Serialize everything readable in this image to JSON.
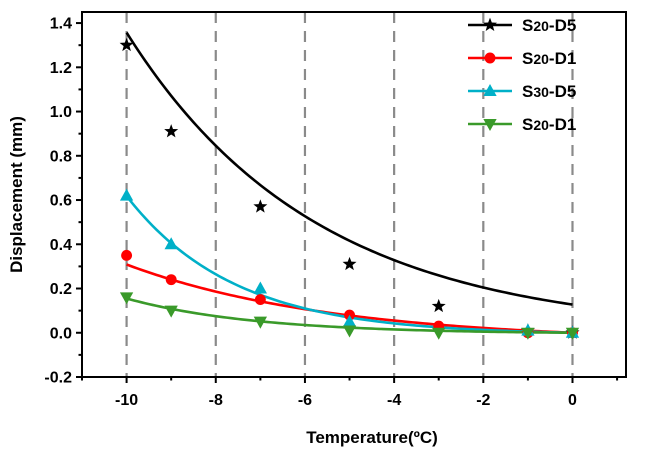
{
  "chart_data": {
    "type": "line",
    "title": "",
    "xlabel": "Temperature",
    "xlabel_unit": "(ºC)",
    "ylabel": "Displacement (mm)",
    "xlim": [
      -11,
      1.2
    ],
    "ylim": [
      -0.2,
      1.45
    ],
    "x_ticks": [
      -10,
      -8,
      -6,
      -4,
      -2,
      0
    ],
    "x_tick_labels": [
      "-10",
      "-8",
      "-6",
      "-4",
      "-2",
      "0"
    ],
    "y_ticks": [
      -0.2,
      0.0,
      0.2,
      0.4,
      0.6,
      0.8,
      1.0,
      1.2,
      1.4
    ],
    "y_tick_labels": [
      "-0.2",
      "0.0",
      "0.2",
      "0.4",
      "0.6",
      "0.8",
      "1.0",
      "1.2",
      "1.4"
    ],
    "grid": "vertical dashed lines at x ticks",
    "legend_position": "top-right",
    "series": [
      {
        "name": "S20-D5",
        "name_parts": [
          "S",
          "20",
          "-D5"
        ],
        "color": "#000000",
        "marker": "star",
        "x": [
          -10,
          -9,
          -7,
          -5,
          -3,
          -1,
          0
        ],
        "y": [
          1.3,
          0.91,
          0.57,
          0.31,
          0.12,
          0.01,
          0.0
        ],
        "fit": {
          "a": 0.0,
          "b": 0.1275,
          "k": 0.2365
        }
      },
      {
        "name": "S20-D1",
        "name_parts": [
          "S",
          "20",
          "-D1"
        ],
        "color": "#ff0000",
        "marker": "circle",
        "x": [
          -10,
          -9,
          -7,
          -5,
          -3,
          -1,
          0
        ],
        "y": [
          0.35,
          0.24,
          0.15,
          0.08,
          0.03,
          0.0,
          0.0
        ],
        "fit": {
          "a": -0.04,
          "b": 0.04,
          "k": 0.2165
        }
      },
      {
        "name": "S30-D5",
        "name_parts": [
          "S",
          "30",
          "-D5"
        ],
        "color": "#00b0c8",
        "marker": "triangle-up",
        "x": [
          -10,
          -9,
          -7,
          -5,
          -1,
          0
        ],
        "y": [
          0.62,
          0.4,
          0.2,
          0.05,
          0.01,
          0.0
        ],
        "fit": {
          "a": -0.01,
          "b": 0.01,
          "k": 0.414
        }
      },
      {
        "name": "S20-D1",
        "name_parts": [
          "S",
          "20",
          "-D1"
        ],
        "color": "#3a9a2a",
        "marker": "triangle-down",
        "x": [
          -10,
          -9,
          -7,
          -5,
          -3,
          -1,
          0
        ],
        "y": [
          0.16,
          0.1,
          0.05,
          0.01,
          0.0,
          0.0,
          0.0
        ],
        "fit": {
          "a": -0.005,
          "b": 0.005,
          "k": 0.3466
        }
      }
    ]
  }
}
